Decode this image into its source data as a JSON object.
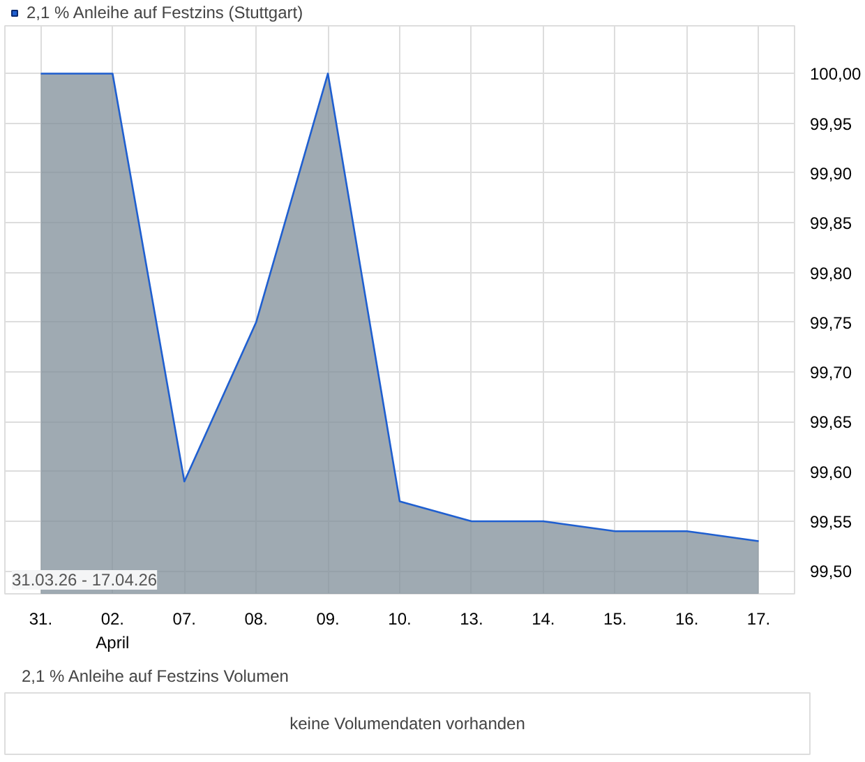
{
  "chart_data": [
    {
      "type": "area",
      "categories": [
        "31.",
        "02.\nApril",
        "07.",
        "08.",
        "09.",
        "10.",
        "13.",
        "14.",
        "15.",
        "16.",
        "17."
      ],
      "series": [
        {
          "name": "2,1 % Anleihe auf Festzins (Stuttgart)",
          "color": "#1f5fd0",
          "values": [
            100.0,
            100.0,
            99.59,
            99.75,
            100.0,
            99.57,
            99.55,
            99.55,
            99.54,
            99.54,
            99.53
          ]
        }
      ],
      "ylim": [
        99.477,
        100.048
      ],
      "yticks": [
        {
          "value": 99.5,
          "label": "99,50"
        },
        {
          "value": 99.55,
          "label": "99,55"
        },
        {
          "value": 99.6,
          "label": "99,60"
        },
        {
          "value": 99.65,
          "label": "99,65"
        },
        {
          "value": 99.7,
          "label": "99,70"
        },
        {
          "value": 99.75,
          "label": "99,75"
        },
        {
          "value": 99.8,
          "label": "99,80"
        },
        {
          "value": 99.85,
          "label": "99,85"
        },
        {
          "value": 99.9,
          "label": "99,90"
        },
        {
          "value": 99.95,
          "label": "99,95"
        },
        {
          "value": 100.0,
          "label": "100,00"
        }
      ],
      "grid": true,
      "legend": "top left",
      "annotations": [
        "31.03.26 - 17.04.26"
      ]
    },
    {
      "type": "other",
      "title": "2,1 % Anleihe auf Festzins Volumen",
      "annotations": [
        "keine Volumendaten vorhanden"
      ]
    }
  ]
}
